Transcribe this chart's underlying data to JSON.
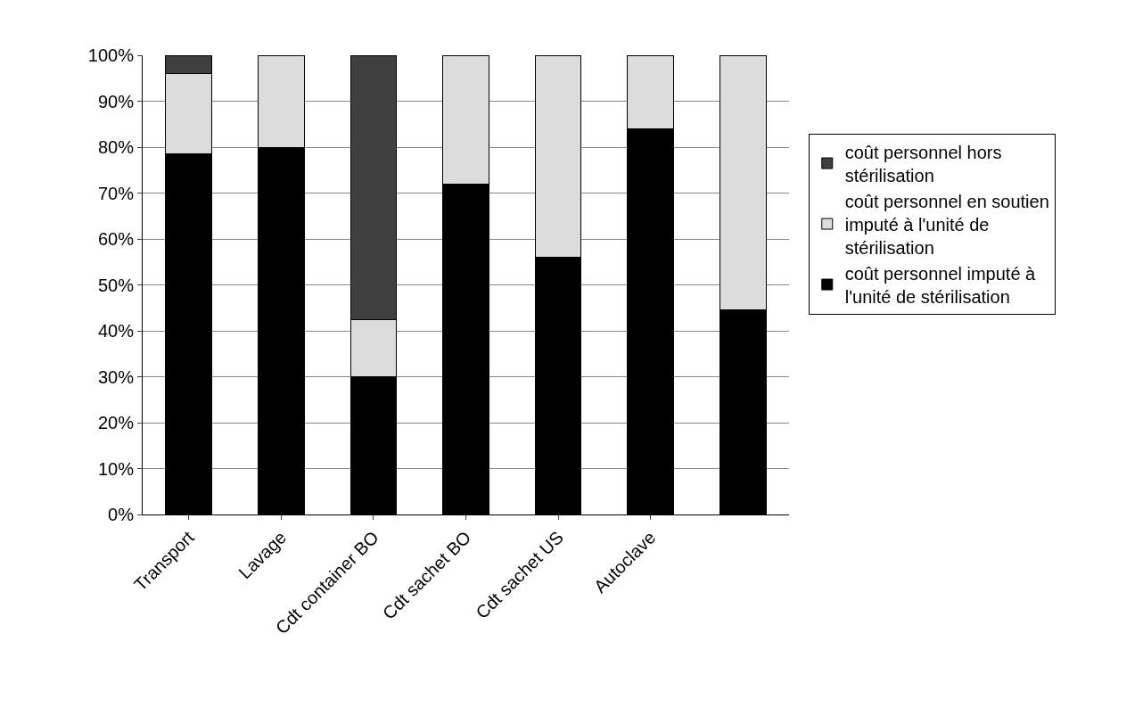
{
  "chart_data": {
    "type": "bar",
    "stacked": true,
    "categories": [
      "Transport",
      "Lavage",
      "Cdt container BO",
      "Cdt sachet BO",
      "Cdt sachet US",
      "Autoclave",
      null
    ],
    "series": [
      {
        "name": "coût personnel imputé à l'unité de stérilisation",
        "color": "#000000",
        "values": [
          78.5,
          80,
          30,
          72,
          56,
          84,
          44.5
        ]
      },
      {
        "name": "coût personnel en soutien imputé à l'unité de stérilisation",
        "color": "#dcdcdc",
        "values": [
          17.5,
          20,
          12.5,
          28,
          44,
          16,
          55.5
        ]
      },
      {
        "name": "coût personnel hors stérilisation",
        "color": "#404040",
        "values": [
          4,
          null,
          57.5,
          null,
          null,
          null,
          null
        ]
      }
    ],
    "ylim": [
      0,
      100
    ],
    "yticks": [
      {
        "value": 0,
        "label": "0%"
      },
      {
        "value": 10,
        "label": "10%"
      },
      {
        "value": 20,
        "label": "20%"
      },
      {
        "value": 30,
        "label": "30%"
      },
      {
        "value": 40,
        "label": "40%"
      },
      {
        "value": 50,
        "label": "50%"
      },
      {
        "value": 60,
        "label": "60%"
      },
      {
        "value": 70,
        "label": "70%"
      },
      {
        "value": 80,
        "label": "80%"
      },
      {
        "value": 90,
        "label": "90%"
      },
      {
        "value": 100,
        "label": "100%"
      }
    ],
    "grid": "y",
    "legend": "right"
  }
}
